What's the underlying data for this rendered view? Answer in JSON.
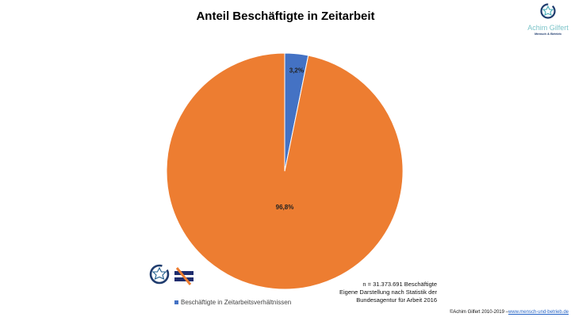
{
  "chart_data": {
    "type": "pie",
    "title": "Anteil Beschäftigte in Zeitarbeit",
    "slices": [
      {
        "label": "Beschäftigte in Zeitarbeitsverhältnissen",
        "value": 3.2,
        "data_label": "3,2%",
        "color": "#4472c4"
      },
      {
        "value": 96.8,
        "data_label": "96,8%",
        "color": "#ed7d31"
      }
    ],
    "legend": {
      "placement": "bottom-left",
      "entries": [
        "Beschäftigte in Zeitarbeitsverhältnissen"
      ]
    }
  },
  "logo": {
    "name": "Achim Gilfert",
    "tagline": "Mensch & Betrieb"
  },
  "note": {
    "line1": "n =  31.373.691 Beschäftigte",
    "line2": "Eigene Darstellung nach Statistik der",
    "line3": "Bundesagentur für Arbeit 2016"
  },
  "footer": {
    "copyright": "©Achim Gilfert 2010-2019 –",
    "link": "www.mensch-und-betrieb.de"
  }
}
